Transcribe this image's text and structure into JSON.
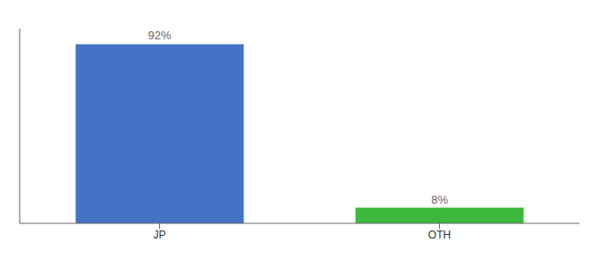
{
  "chart_data": {
    "type": "bar",
    "categories": [
      "JP",
      "OTH"
    ],
    "values": [
      92,
      8
    ],
    "value_labels": [
      "92%",
      "8%"
    ],
    "colors": [
      "#4472C4",
      "#3CB83C"
    ],
    "ylim": [
      0,
      100
    ],
    "data_labels": true,
    "tick_labels": "x"
  }
}
